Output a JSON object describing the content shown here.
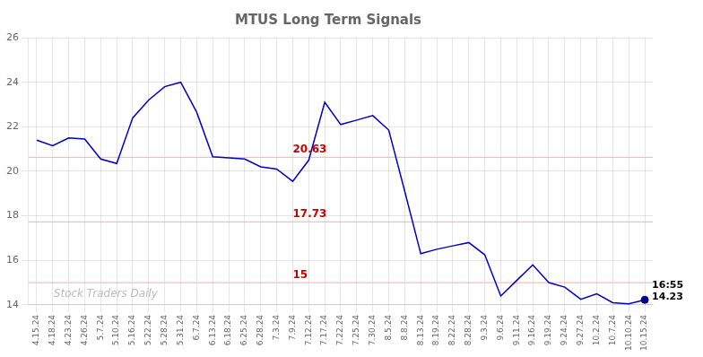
{
  "chart_data": {
    "type": "line",
    "title": "MTUS Long Term Signals",
    "categories": [
      "4.15.24",
      "4.18.24",
      "4.23.24",
      "4.26.24",
      "5.7.24",
      "5.10.24",
      "5.16.24",
      "5.22.24",
      "5.28.24",
      "5.31.24",
      "6.7.24",
      "6.13.24",
      "6.18.24",
      "6.25.24",
      "6.28.24",
      "7.3.24",
      "7.9.24",
      "7.12.24",
      "7.17.24",
      "7.22.24",
      "7.25.24",
      "7.30.24",
      "8.5.24",
      "8.8.24",
      "8.13.24",
      "8.19.24",
      "8.22.24",
      "8.28.24",
      "9.3.24",
      "9.6.24",
      "9.11.24",
      "9.16.24",
      "9.19.24",
      "9.24.24",
      "9.27.24",
      "10.2.24",
      "10.7.24",
      "10.10.24",
      "10.15.24"
    ],
    "values": [
      21.4,
      21.15,
      21.5,
      21.45,
      20.55,
      20.35,
      22.4,
      23.2,
      23.8,
      24.0,
      22.65,
      20.65,
      20.6,
      20.55,
      20.2,
      20.1,
      19.55,
      20.5,
      23.1,
      22.1,
      22.3,
      22.5,
      21.85,
      19.1,
      16.3,
      16.5,
      16.65,
      16.8,
      16.25,
      14.4,
      15.1,
      15.8,
      15.0,
      14.8,
      14.25,
      14.5,
      14.1,
      14.05,
      14.23
    ],
    "color": "#0000cc",
    "ylim": [
      14.0,
      26.0
    ],
    "yticks": [
      14,
      16,
      18,
      20,
      22,
      24,
      26
    ],
    "grid": true,
    "hlines": [
      {
        "value": 20.63,
        "label": "20.63",
        "color": "#ffaaaa",
        "label_color": "#cc0000"
      },
      {
        "value": 17.73,
        "label": "17.73",
        "color": "#ffaaaa",
        "label_color": "#cc0000"
      },
      {
        "value": 15.0,
        "label": "15",
        "color": "#ffaaaa",
        "label_color": "#cc0000"
      }
    ],
    "endpoint": {
      "value": 14.23,
      "color": "#000099"
    },
    "annotations": [
      {
        "text": "16:55\n14.23"
      }
    ],
    "watermark": "Stock Traders Daily"
  }
}
